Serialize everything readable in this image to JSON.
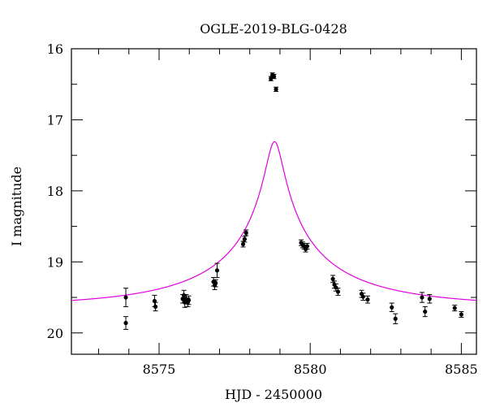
{
  "chart_data": {
    "type": "scatter",
    "title": "OGLE-2019-BLG-0428",
    "xlabel": "HJD - 2450000",
    "ylabel": "I magnitude",
    "xlim": [
      8572.1,
      8585.5
    ],
    "ylim": [
      16,
      20.3
    ],
    "y_inverted": true,
    "grid": false,
    "x_ticks": [
      8575,
      8580,
      8585
    ],
    "y_ticks": [
      16,
      17,
      18,
      19,
      20
    ],
    "x_minor_step": 1,
    "y_minor_step": 0.5,
    "colors": {
      "model": "#e000e0",
      "points": "#000000"
    },
    "model_curve": {
      "name": "",
      "t0": 8578.82,
      "u0": 0.051,
      "tE": 5.26,
      "baseline_mag": 19.625,
      "blending_fs": 0.4
    },
    "series": [
      {
        "name": "",
        "points": [
          {
            "x": 8573.9,
            "y": 19.5,
            "err": 0.13
          },
          {
            "x": 8573.9,
            "y": 19.86,
            "err": 0.09
          },
          {
            "x": 8574.85,
            "y": 19.55,
            "err": 0.08
          },
          {
            "x": 8574.88,
            "y": 19.63,
            "err": 0.06
          },
          {
            "x": 8575.78,
            "y": 19.52,
            "err": 0.06
          },
          {
            "x": 8575.82,
            "y": 19.47,
            "err": 0.07
          },
          {
            "x": 8575.85,
            "y": 19.57,
            "err": 0.07
          },
          {
            "x": 8575.9,
            "y": 19.52,
            "err": 0.06
          },
          {
            "x": 8575.95,
            "y": 19.57,
            "err": 0.06
          },
          {
            "x": 8575.98,
            "y": 19.54,
            "err": 0.06
          },
          {
            "x": 8576.8,
            "y": 19.28,
            "err": 0.06
          },
          {
            "x": 8576.84,
            "y": 19.33,
            "err": 0.06
          },
          {
            "x": 8576.87,
            "y": 19.3,
            "err": 0.05
          },
          {
            "x": 8576.92,
            "y": 19.12,
            "err": 0.1
          },
          {
            "x": 8577.78,
            "y": 18.75,
            "err": 0.04
          },
          {
            "x": 8577.83,
            "y": 18.68,
            "err": 0.04
          },
          {
            "x": 8577.88,
            "y": 18.59,
            "err": 0.04
          },
          {
            "x": 8578.7,
            "y": 16.42,
            "err": 0.03
          },
          {
            "x": 8578.75,
            "y": 16.37,
            "err": 0.03
          },
          {
            "x": 8578.8,
            "y": 16.39,
            "err": 0.03
          },
          {
            "x": 8578.87,
            "y": 16.57,
            "err": 0.03
          },
          {
            "x": 8579.7,
            "y": 18.73,
            "err": 0.04
          },
          {
            "x": 8579.75,
            "y": 18.76,
            "err": 0.04
          },
          {
            "x": 8579.8,
            "y": 18.78,
            "err": 0.04
          },
          {
            "x": 8579.85,
            "y": 18.82,
            "err": 0.04
          },
          {
            "x": 8579.9,
            "y": 18.78,
            "err": 0.04
          },
          {
            "x": 8580.75,
            "y": 19.24,
            "err": 0.05
          },
          {
            "x": 8580.8,
            "y": 19.32,
            "err": 0.05
          },
          {
            "x": 8580.85,
            "y": 19.36,
            "err": 0.05
          },
          {
            "x": 8580.92,
            "y": 19.42,
            "err": 0.05
          },
          {
            "x": 8581.7,
            "y": 19.45,
            "err": 0.05
          },
          {
            "x": 8581.75,
            "y": 19.49,
            "err": 0.05
          },
          {
            "x": 8581.9,
            "y": 19.53,
            "err": 0.05
          },
          {
            "x": 8582.7,
            "y": 19.64,
            "err": 0.06
          },
          {
            "x": 8582.82,
            "y": 19.8,
            "err": 0.07
          },
          {
            "x": 8583.7,
            "y": 19.5,
            "err": 0.07
          },
          {
            "x": 8583.8,
            "y": 19.7,
            "err": 0.07
          },
          {
            "x": 8583.95,
            "y": 19.52,
            "err": 0.06
          },
          {
            "x": 8584.78,
            "y": 19.65,
            "err": 0.04
          },
          {
            "x": 8585.0,
            "y": 19.74,
            "err": 0.04
          }
        ]
      }
    ]
  }
}
